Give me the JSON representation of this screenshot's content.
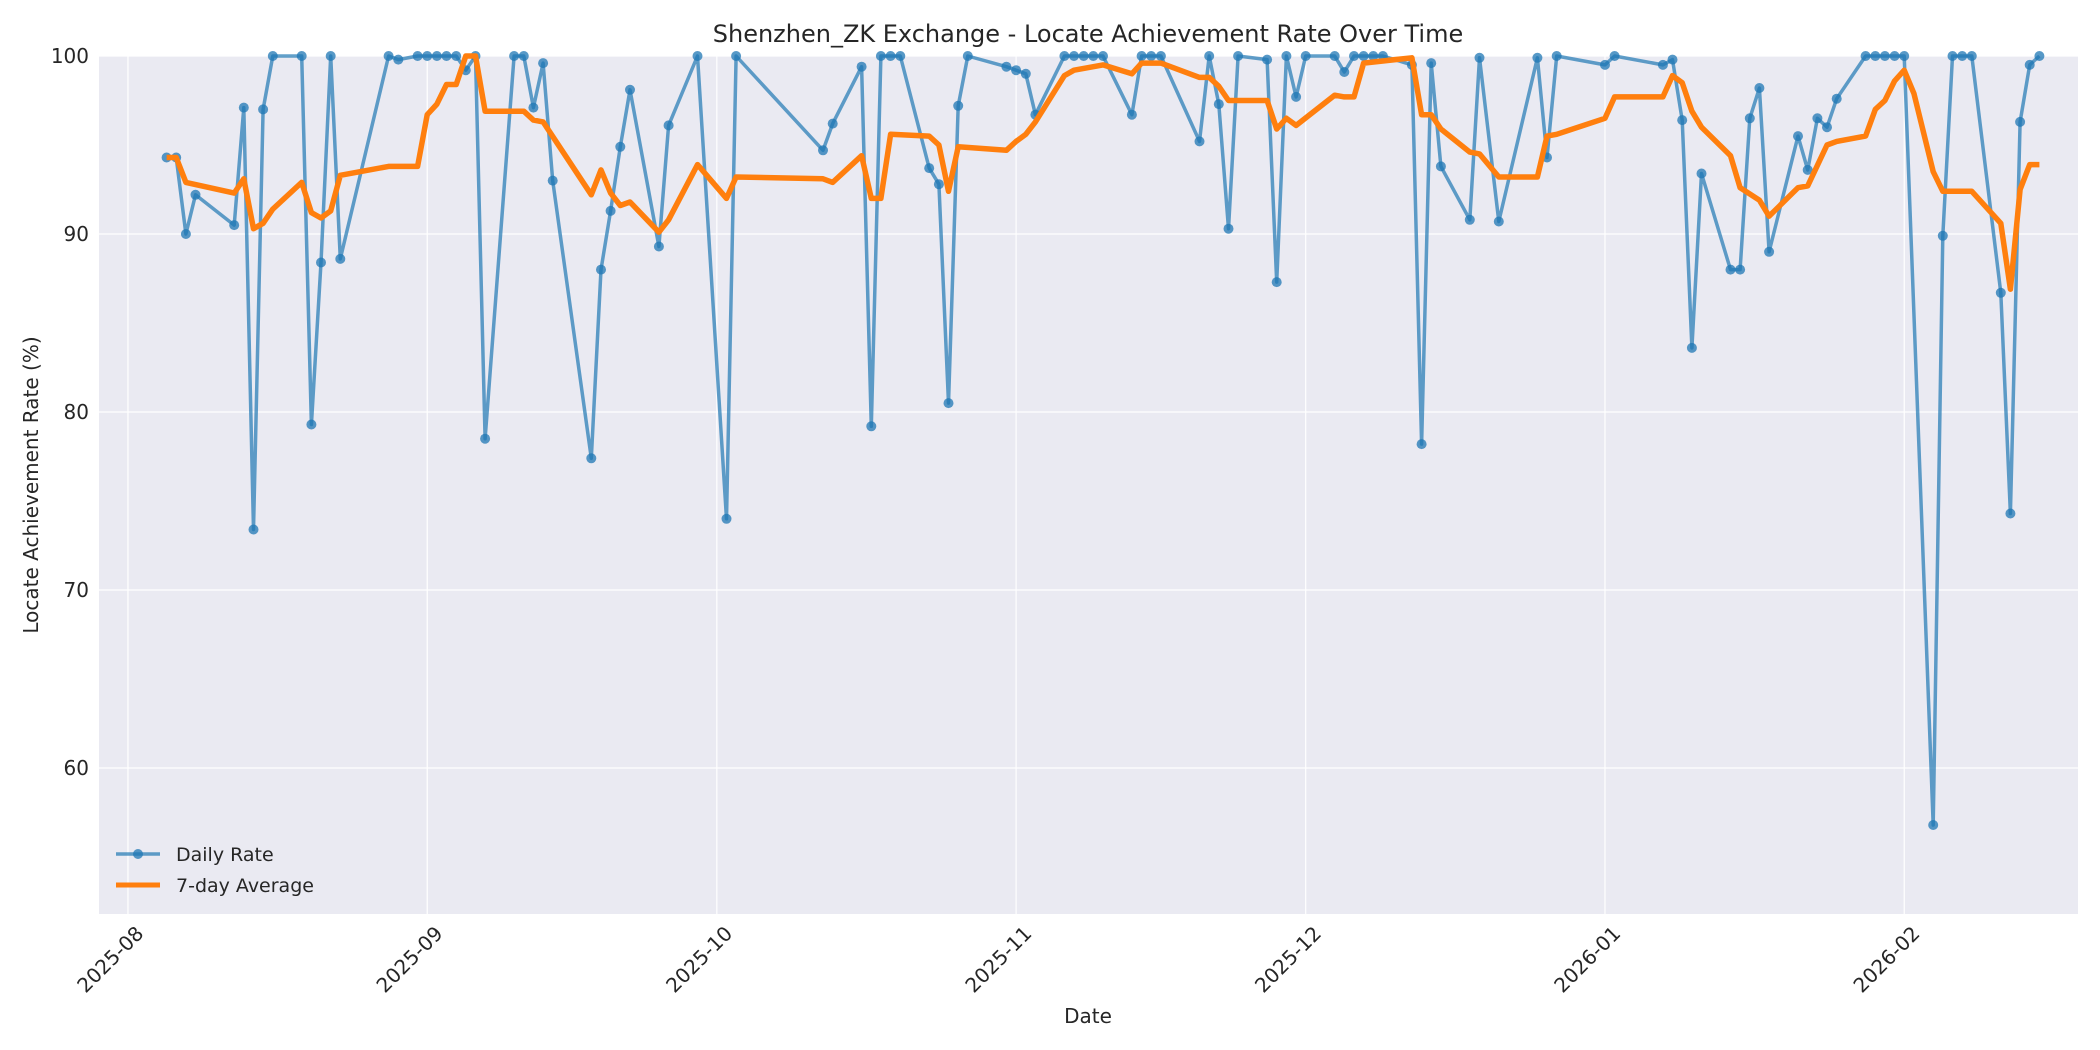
{
  "chart_data": {
    "type": "line",
    "title": "Shenzhen_ZK Exchange - Locate Achievement Rate Over Time",
    "xlabel": "Date",
    "ylabel": "Locate Achievement Rate (%)",
    "x_ticks": [
      "2025-08",
      "2025-09",
      "2025-10",
      "2025-11",
      "2025-12",
      "2026-01",
      "2026-02"
    ],
    "x_range": [
      "2025-07-29",
      "2026-02-19"
    ],
    "y_ticks": [
      60,
      70,
      80,
      90,
      100
    ],
    "ylim": [
      51.8,
      100
    ],
    "grid": true,
    "legend_position": "bottom-left",
    "colors": {
      "daily": "#1f77b4",
      "average": "#ff7f0e",
      "plot_bg": "#eaeaf2",
      "grid": "#ffffff"
    },
    "series": [
      {
        "name": "Daily Rate",
        "marker": "circle",
        "points": [
          [
            "2025-08-05",
            94.3
          ],
          [
            "2025-08-06",
            94.3
          ],
          [
            "2025-08-07",
            90.0
          ],
          [
            "2025-08-08",
            92.2
          ],
          [
            "2025-08-12",
            90.5
          ],
          [
            "2025-08-13",
            97.1
          ],
          [
            "2025-08-14",
            73.4
          ],
          [
            "2025-08-15",
            97.0
          ],
          [
            "2025-08-16",
            100.0
          ],
          [
            "2025-08-19",
            100.0
          ],
          [
            "2025-08-20",
            79.3
          ],
          [
            "2025-08-21",
            88.4
          ],
          [
            "2025-08-22",
            100.0
          ],
          [
            "2025-08-23",
            88.6
          ],
          [
            "2025-08-28",
            100.0
          ],
          [
            "2025-08-29",
            99.8
          ],
          [
            "2025-08-31",
            100.0
          ],
          [
            "2025-09-01",
            100.0
          ],
          [
            "2025-09-02",
            100.0
          ],
          [
            "2025-09-03",
            100.0
          ],
          [
            "2025-09-04",
            100.0
          ],
          [
            "2025-09-05",
            99.2
          ],
          [
            "2025-09-06",
            100.0
          ],
          [
            "2025-09-07",
            78.5
          ],
          [
            "2025-09-10",
            100.0
          ],
          [
            "2025-09-11",
            100.0
          ],
          [
            "2025-09-12",
            97.1
          ],
          [
            "2025-09-13",
            99.6
          ],
          [
            "2025-09-14",
            93.0
          ],
          [
            "2025-09-18",
            77.4
          ],
          [
            "2025-09-19",
            88.0
          ],
          [
            "2025-09-20",
            91.3
          ],
          [
            "2025-09-21",
            94.9
          ],
          [
            "2025-09-22",
            98.1
          ],
          [
            "2025-09-25",
            89.3
          ],
          [
            "2025-09-26",
            96.1
          ],
          [
            "2025-09-29",
            100.0
          ],
          [
            "2025-10-02",
            74.0
          ],
          [
            "2025-10-03",
            100.0
          ],
          [
            "2025-10-12",
            94.7
          ],
          [
            "2025-10-13",
            96.2
          ],
          [
            "2025-10-16",
            99.4
          ],
          [
            "2025-10-17",
            79.2
          ],
          [
            "2025-10-18",
            100.0
          ],
          [
            "2025-10-19",
            100.0
          ],
          [
            "2025-10-20",
            100.0
          ],
          [
            "2025-10-23",
            93.7
          ],
          [
            "2025-10-24",
            92.8
          ],
          [
            "2025-10-25",
            80.5
          ],
          [
            "2025-10-26",
            97.2
          ],
          [
            "2025-10-27",
            100.0
          ],
          [
            "2025-10-31",
            99.4
          ],
          [
            "2025-11-01",
            99.2
          ],
          [
            "2025-11-02",
            99.0
          ],
          [
            "2025-11-03",
            96.7
          ],
          [
            "2025-11-06",
            100.0
          ],
          [
            "2025-11-07",
            100.0
          ],
          [
            "2025-11-08",
            100.0
          ],
          [
            "2025-11-09",
            100.0
          ],
          [
            "2025-11-10",
            100.0
          ],
          [
            "2025-11-13",
            96.7
          ],
          [
            "2025-11-14",
            100.0
          ],
          [
            "2025-11-15",
            100.0
          ],
          [
            "2025-11-16",
            100.0
          ],
          [
            "2025-11-20",
            95.2
          ],
          [
            "2025-11-21",
            100.0
          ],
          [
            "2025-11-22",
            97.3
          ],
          [
            "2025-11-23",
            90.3
          ],
          [
            "2025-11-24",
            100.0
          ],
          [
            "2025-11-27",
            99.8
          ],
          [
            "2025-11-28",
            87.3
          ],
          [
            "2025-11-29",
            100.0
          ],
          [
            "2025-11-30",
            97.7
          ],
          [
            "2025-12-01",
            100.0
          ],
          [
            "2025-12-04",
            100.0
          ],
          [
            "2025-12-05",
            99.1
          ],
          [
            "2025-12-06",
            100.0
          ],
          [
            "2025-12-07",
            100.0
          ],
          [
            "2025-12-08",
            100.0
          ],
          [
            "2025-12-09",
            100.0
          ],
          [
            "2025-12-12",
            99.5
          ],
          [
            "2025-12-13",
            78.2
          ],
          [
            "2025-12-14",
            99.6
          ],
          [
            "2025-12-15",
            93.8
          ],
          [
            "2025-12-18",
            90.8
          ],
          [
            "2025-12-19",
            99.9
          ],
          [
            "2025-12-21",
            90.7
          ],
          [
            "2025-12-25",
            99.9
          ],
          [
            "2025-12-26",
            94.3
          ],
          [
            "2025-12-27",
            100.0
          ],
          [
            "2026-01-01",
            99.5
          ],
          [
            "2026-01-02",
            100.0
          ],
          [
            "2026-01-07",
            99.5
          ],
          [
            "2026-01-08",
            99.8
          ],
          [
            "2026-01-09",
            96.4
          ],
          [
            "2026-01-10",
            83.6
          ],
          [
            "2026-01-11",
            93.4
          ],
          [
            "2026-01-14",
            88.0
          ],
          [
            "2026-01-15",
            88.0
          ],
          [
            "2026-01-16",
            96.5
          ],
          [
            "2026-01-17",
            98.2
          ],
          [
            "2026-01-18",
            89.0
          ],
          [
            "2026-01-21",
            95.5
          ],
          [
            "2026-01-22",
            93.6
          ],
          [
            "2026-01-23",
            96.5
          ],
          [
            "2026-01-24",
            96.0
          ],
          [
            "2026-01-25",
            97.6
          ],
          [
            "2026-01-28",
            100.0
          ],
          [
            "2026-01-29",
            100.0
          ],
          [
            "2026-01-30",
            100.0
          ],
          [
            "2026-01-31",
            100.0
          ],
          [
            "2026-02-01",
            100.0
          ],
          [
            "2026-02-04",
            56.8
          ],
          [
            "2026-02-05",
            89.9
          ],
          [
            "2026-02-06",
            100.0
          ],
          [
            "2026-02-07",
            100.0
          ],
          [
            "2026-02-08",
            100.0
          ],
          [
            "2026-02-11",
            86.7
          ],
          [
            "2026-02-12",
            74.3
          ],
          [
            "2026-02-13",
            96.3
          ],
          [
            "2026-02-14",
            99.5
          ],
          [
            "2026-02-15",
            100.0
          ]
        ]
      },
      {
        "name": "7-day Average",
        "points": [
          [
            "2025-08-05",
            94.3
          ],
          [
            "2025-08-06",
            94.3
          ],
          [
            "2025-08-07",
            92.9
          ],
          [
            "2025-08-12",
            92.3
          ],
          [
            "2025-08-13",
            93.1
          ],
          [
            "2025-08-14",
            90.3
          ],
          [
            "2025-08-15",
            90.6
          ],
          [
            "2025-08-16",
            91.4
          ],
          [
            "2025-08-19",
            92.9
          ],
          [
            "2025-08-20",
            91.2
          ],
          [
            "2025-08-21",
            90.9
          ],
          [
            "2025-08-22",
            91.3
          ],
          [
            "2025-08-23",
            93.3
          ],
          [
            "2025-08-28",
            93.8
          ],
          [
            "2025-08-31",
            93.8
          ],
          [
            "2025-09-01",
            96.7
          ],
          [
            "2025-09-02",
            97.3
          ],
          [
            "2025-09-03",
            98.4
          ],
          [
            "2025-09-04",
            98.4
          ],
          [
            "2025-09-05",
            100.0
          ],
          [
            "2025-09-06",
            100.0
          ],
          [
            "2025-09-07",
            96.9
          ],
          [
            "2025-09-11",
            96.9
          ],
          [
            "2025-09-12",
            96.4
          ],
          [
            "2025-09-13",
            96.3
          ],
          [
            "2025-09-18",
            92.2
          ],
          [
            "2025-09-19",
            93.6
          ],
          [
            "2025-09-20",
            92.3
          ],
          [
            "2025-09-21",
            91.6
          ],
          [
            "2025-09-22",
            91.8
          ],
          [
            "2025-09-25",
            90.1
          ],
          [
            "2025-09-26",
            90.8
          ],
          [
            "2025-09-29",
            93.9
          ],
          [
            "2025-10-02",
            92.0
          ],
          [
            "2025-10-03",
            93.2
          ],
          [
            "2025-10-12",
            93.1
          ],
          [
            "2025-10-13",
            92.9
          ],
          [
            "2025-10-16",
            94.4
          ],
          [
            "2025-10-17",
            92.0
          ],
          [
            "2025-10-18",
            92.0
          ],
          [
            "2025-10-19",
            95.6
          ],
          [
            "2025-10-23",
            95.5
          ],
          [
            "2025-10-24",
            95.0
          ],
          [
            "2025-10-25",
            92.4
          ],
          [
            "2025-10-26",
            94.9
          ],
          [
            "2025-10-31",
            94.7
          ],
          [
            "2025-11-01",
            95.2
          ],
          [
            "2025-11-02",
            95.6
          ],
          [
            "2025-11-03",
            96.3
          ],
          [
            "2025-11-06",
            98.9
          ],
          [
            "2025-11-07",
            99.2
          ],
          [
            "2025-11-10",
            99.5
          ],
          [
            "2025-11-13",
            99.0
          ],
          [
            "2025-11-14",
            99.6
          ],
          [
            "2025-11-16",
            99.6
          ],
          [
            "2025-11-20",
            98.8
          ],
          [
            "2025-11-21",
            98.8
          ],
          [
            "2025-11-22",
            98.3
          ],
          [
            "2025-11-23",
            97.5
          ],
          [
            "2025-11-27",
            97.5
          ],
          [
            "2025-11-28",
            95.9
          ],
          [
            "2025-11-29",
            96.5
          ],
          [
            "2025-11-30",
            96.1
          ],
          [
            "2025-12-04",
            97.8
          ],
          [
            "2025-12-05",
            97.7
          ],
          [
            "2025-12-06",
            97.7
          ],
          [
            "2025-12-07",
            99.6
          ],
          [
            "2025-12-12",
            99.9
          ],
          [
            "2025-12-13",
            96.7
          ],
          [
            "2025-12-14",
            96.7
          ],
          [
            "2025-12-15",
            95.9
          ],
          [
            "2025-12-18",
            94.6
          ],
          [
            "2025-12-19",
            94.5
          ],
          [
            "2025-12-21",
            93.2
          ],
          [
            "2025-12-25",
            93.2
          ],
          [
            "2025-12-26",
            95.5
          ],
          [
            "2025-12-27",
            95.6
          ],
          [
            "2026-01-01",
            96.5
          ],
          [
            "2026-01-02",
            97.7
          ],
          [
            "2026-01-07",
            97.7
          ],
          [
            "2026-01-08",
            98.9
          ],
          [
            "2026-01-09",
            98.5
          ],
          [
            "2026-01-10",
            96.9
          ],
          [
            "2026-01-11",
            96.0
          ],
          [
            "2026-01-14",
            94.4
          ],
          [
            "2026-01-15",
            92.6
          ],
          [
            "2026-01-17",
            91.9
          ],
          [
            "2026-01-18",
            91.0
          ],
          [
            "2026-01-21",
            92.6
          ],
          [
            "2026-01-22",
            92.7
          ],
          [
            "2026-01-24",
            95.0
          ],
          [
            "2026-01-25",
            95.2
          ],
          [
            "2026-01-28",
            95.5
          ],
          [
            "2026-01-29",
            97.0
          ],
          [
            "2026-01-30",
            97.5
          ],
          [
            "2026-01-31",
            98.6
          ],
          [
            "2026-02-01",
            99.2
          ],
          [
            "2026-02-02",
            97.9
          ],
          [
            "2026-02-04",
            93.5
          ],
          [
            "2026-02-05",
            92.4
          ],
          [
            "2026-02-08",
            92.4
          ],
          [
            "2026-02-11",
            90.6
          ],
          [
            "2026-02-12",
            86.9
          ],
          [
            "2026-02-13",
            92.5
          ],
          [
            "2026-02-14",
            93.9
          ],
          [
            "2026-02-15",
            93.9
          ]
        ]
      }
    ]
  }
}
